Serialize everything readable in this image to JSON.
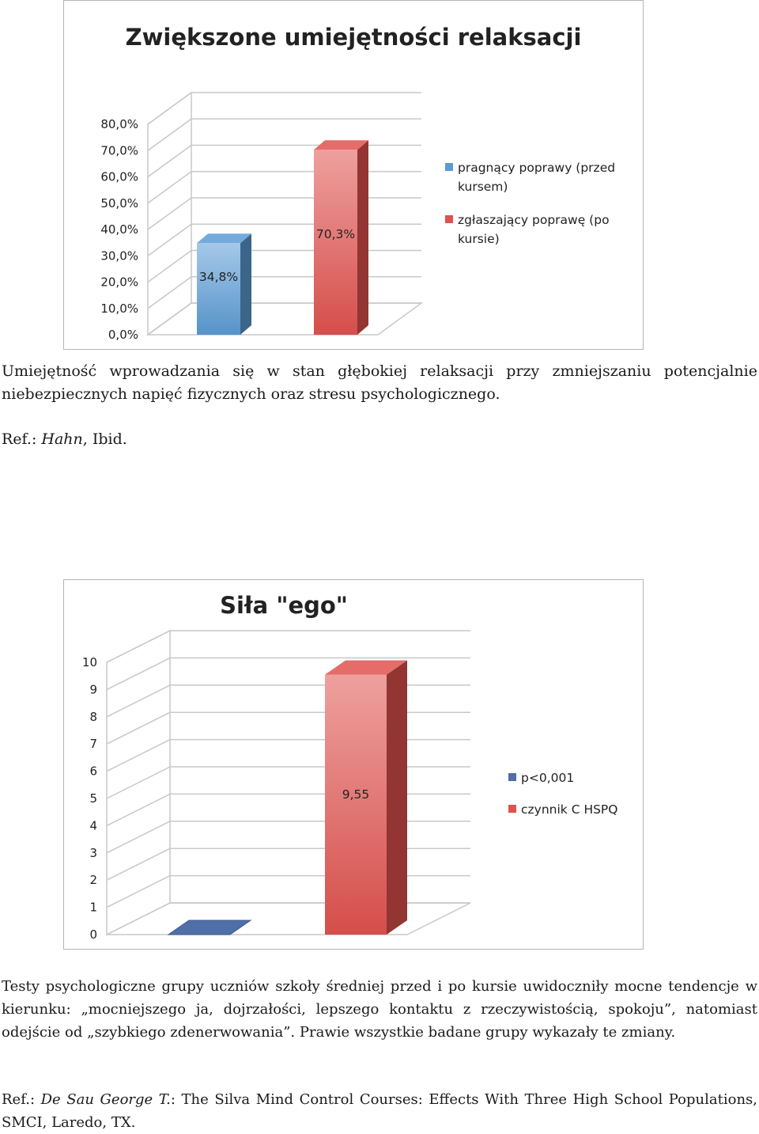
{
  "chart_data": [
    {
      "type": "bar",
      "title": "Zwiększone umiejętności relaksacji",
      "ylim": [
        0,
        80
      ],
      "y_ticks": [
        "0,0%",
        "10,0%",
        "20,0%",
        "30,0%",
        "40,0%",
        "50,0%",
        "60,0%",
        "70,0%",
        "80,0%"
      ],
      "series": [
        {
          "name": "pragnący poprawy (przed kursem)",
          "values": [
            34.8
          ],
          "label": "34,8%",
          "color": "#5b9bd5"
        },
        {
          "name": "zgłaszający poprawę (po kursie)",
          "values": [
            70.3
          ],
          "label": "70,3%",
          "color": "#e0524f"
        }
      ],
      "legend": [
        "pragnący poprawy (przed kursem)",
        "zgłaszający poprawę (po kursie)"
      ],
      "legend_position": "right",
      "grid": true
    },
    {
      "type": "bar",
      "title": "Siła \"ego\"",
      "ylim": [
        0,
        10
      ],
      "y_ticks": [
        "0",
        "1",
        "2",
        "3",
        "4",
        "5",
        "6",
        "7",
        "8",
        "9",
        "10"
      ],
      "series": [
        {
          "name": "p<0,001",
          "values": [
            0
          ],
          "label": "",
          "color": "#4f6fa8"
        },
        {
          "name": "czynnik C HSPQ",
          "values": [
            9.55
          ],
          "label": "9,55",
          "color": "#e0524f"
        }
      ],
      "legend": [
        "p<0,001",
        "czynnik C HSPQ"
      ],
      "legend_position": "right",
      "grid": true
    }
  ],
  "text": {
    "p1": "Umiejętność wprowadzania się w stan głębokiej relaksacji przy zmniejszaniu potencjalnie niebezpiecznych napięć fizycznych oraz stresu psychologicznego.",
    "ref1_prefix": "Ref.: ",
    "ref1_author": "Hahn",
    "ref1_suffix": ", Ibid.",
    "p2": "Testy psychologiczne grupy uczniów szkoły średniej przed i po kursie uwidoczniły mocne tendencje w kierunku: „mocniejszego ja, dojrzałości, lepszego kontaktu z rzeczywistością, spokoju”, natomiast odejście od „szybkiego zdenerwowania”. Prawie wszystkie badane grupy wykazały te zmiany.",
    "ref2_prefix": "Ref.: ",
    "ref2_author": "De Sau George T.",
    "ref2_suffix": ": The Silva Mind Control Courses: Effects With Three High School Populations, SMCI, Laredo, TX."
  }
}
